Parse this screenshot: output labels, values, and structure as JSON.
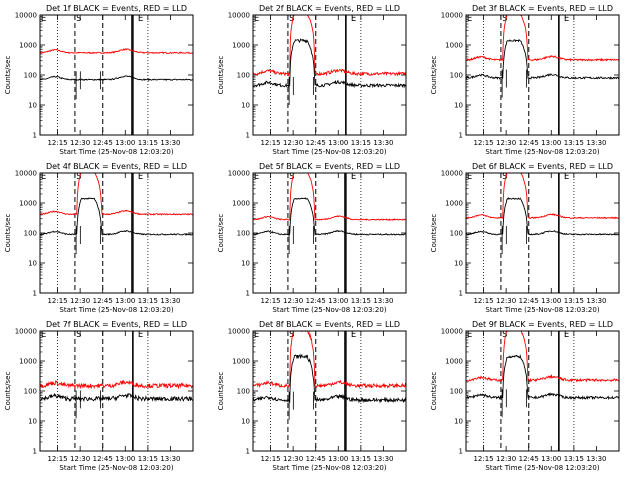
{
  "chart_data": {
    "type": "line",
    "layout": "3x3 grid of log-scale light curves",
    "x_range": [
      "12:03:20",
      "13:45:00"
    ],
    "xtick_labels": [
      "12:15",
      "12:30",
      "12:45",
      "13:00",
      "13:15",
      "13:30"
    ],
    "ylim": [
      1,
      10000
    ],
    "yscale": "log",
    "ytick_labels": [
      "1",
      "10",
      "100",
      "1000",
      "10000"
    ],
    "ylabel": "Counts/sec",
    "xlabel": "Start Time (25-Nov-08 12:03:20)",
    "colors": {
      "events": "#000000",
      "lld": "#ff0000"
    },
    "markers": {
      "s": "S",
      "e": "E"
    },
    "panels": [
      {
        "title": "Det 1f BLACK = Events, RED = LLD",
        "events_base": 70,
        "lld_base": 550,
        "flare": false,
        "noise": 0.02
      },
      {
        "title": "Det 2f BLACK = Events, RED = LLD",
        "events_base": 45,
        "lld_base": 110,
        "flare": true,
        "noise": 0.05
      },
      {
        "title": "Det 3f BLACK = Events, RED = LLD",
        "events_base": 80,
        "lld_base": 320,
        "flare": true,
        "noise": 0.03
      },
      {
        "title": "Det 4f BLACK = Events, RED = LLD",
        "events_base": 90,
        "lld_base": 420,
        "flare": true,
        "noise": 0.02
      },
      {
        "title": "Det 5f BLACK = Events, RED = LLD",
        "events_base": 90,
        "lld_base": 280,
        "flare": true,
        "noise": 0.02
      },
      {
        "title": "Det 6f BLACK = Events, RED = LLD",
        "events_base": 90,
        "lld_base": 320,
        "flare": true,
        "noise": 0.02
      },
      {
        "title": "Det 7f BLACK = Events, RED = LLD",
        "events_base": 55,
        "lld_base": 150,
        "flare": false,
        "noise": 0.07
      },
      {
        "title": "Det 8f BLACK = Events, RED = LLD",
        "events_base": 50,
        "lld_base": 150,
        "flare": true,
        "noise": 0.06
      },
      {
        "title": "Det 9f BLACK = Events, RED = LLD",
        "events_base": 60,
        "lld_base": 230,
        "flare": true,
        "noise": 0.04
      }
    ]
  }
}
